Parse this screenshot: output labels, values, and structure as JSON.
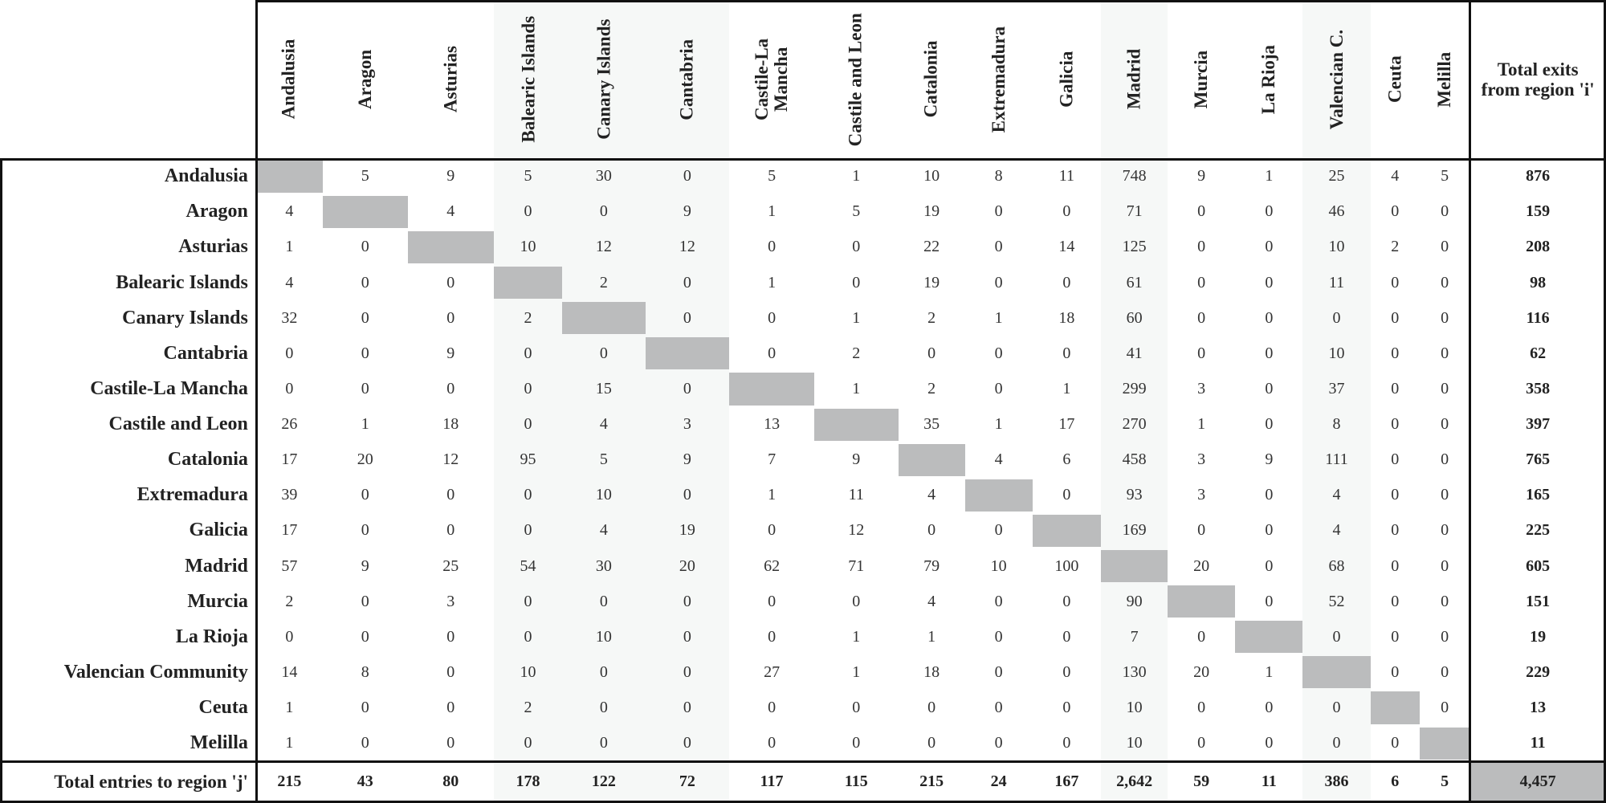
{
  "columns": [
    "Andalusia",
    "Aragon",
    "Asturias",
    "Balearic Islands",
    "Canary Islands",
    "Cantabria",
    "Castile-La Mancha",
    "Castile and Leon",
    "Catalonia",
    "Extremadura",
    "Galicia",
    "Madrid",
    "Murcia",
    "La Rioja",
    "Valencian C.",
    "Ceuta",
    "Melilla"
  ],
  "total_header": "Total exits from region 'i'",
  "rows": [
    {
      "label": "Andalusia",
      "cells": [
        null,
        5,
        9,
        5,
        30,
        0,
        5,
        1,
        10,
        8,
        11,
        748,
        9,
        1,
        25,
        4,
        5
      ],
      "total": 876
    },
    {
      "label": "Aragon",
      "cells": [
        4,
        null,
        4,
        0,
        0,
        9,
        1,
        5,
        19,
        0,
        0,
        71,
        0,
        0,
        46,
        0,
        0
      ],
      "total": 159
    },
    {
      "label": "Asturias",
      "cells": [
        1,
        0,
        null,
        10,
        12,
        12,
        0,
        0,
        22,
        0,
        14,
        125,
        0,
        0,
        10,
        2,
        0
      ],
      "total": 208
    },
    {
      "label": "Balearic Islands",
      "cells": [
        4,
        0,
        0,
        null,
        2,
        0,
        1,
        0,
        19,
        0,
        0,
        61,
        0,
        0,
        11,
        0,
        0
      ],
      "total": 98
    },
    {
      "label": "Canary Islands",
      "cells": [
        32,
        0,
        0,
        2,
        null,
        0,
        0,
        1,
        2,
        1,
        18,
        60,
        0,
        0,
        0,
        0,
        0
      ],
      "total": 116
    },
    {
      "label": "Cantabria",
      "cells": [
        0,
        0,
        9,
        0,
        0,
        null,
        0,
        2,
        0,
        0,
        0,
        41,
        0,
        0,
        10,
        0,
        0
      ],
      "total": 62
    },
    {
      "label": "Castile-La Mancha",
      "cells": [
        0,
        0,
        0,
        0,
        15,
        0,
        null,
        1,
        2,
        0,
        1,
        299,
        3,
        0,
        37,
        0,
        0
      ],
      "total": 358
    },
    {
      "label": "Castile and Leon",
      "cells": [
        26,
        1,
        18,
        0,
        4,
        3,
        13,
        null,
        35,
        1,
        17,
        270,
        1,
        0,
        8,
        0,
        0
      ],
      "total": 397
    },
    {
      "label": "Catalonia",
      "cells": [
        17,
        20,
        12,
        95,
        5,
        9,
        7,
        9,
        null,
        4,
        6,
        458,
        3,
        9,
        111,
        0,
        0
      ],
      "total": 765
    },
    {
      "label": "Extremadura",
      "cells": [
        39,
        0,
        0,
        0,
        10,
        0,
        1,
        11,
        4,
        null,
        0,
        93,
        3,
        0,
        4,
        0,
        0
      ],
      "total": 165
    },
    {
      "label": "Galicia",
      "cells": [
        17,
        0,
        0,
        0,
        4,
        19,
        0,
        12,
        0,
        0,
        null,
        169,
        0,
        0,
        4,
        0,
        0
      ],
      "total": 225
    },
    {
      "label": "Madrid",
      "cells": [
        57,
        9,
        25,
        54,
        30,
        20,
        62,
        71,
        79,
        10,
        100,
        null,
        20,
        0,
        68,
        0,
        0
      ],
      "total": 605
    },
    {
      "label": "Murcia",
      "cells": [
        2,
        0,
        3,
        0,
        0,
        0,
        0,
        0,
        4,
        0,
        0,
        90,
        null,
        0,
        52,
        0,
        0
      ],
      "total": 151
    },
    {
      "label": "La Rioja",
      "cells": [
        0,
        0,
        0,
        0,
        10,
        0,
        0,
        1,
        1,
        0,
        0,
        7,
        0,
        null,
        0,
        0,
        0
      ],
      "total": 19
    },
    {
      "label": "Valencian Community",
      "cells": [
        14,
        8,
        0,
        10,
        0,
        0,
        27,
        1,
        18,
        0,
        0,
        130,
        20,
        1,
        null,
        0,
        0
      ],
      "total": 229
    },
    {
      "label": "Ceuta",
      "cells": [
        1,
        0,
        0,
        2,
        0,
        0,
        0,
        0,
        0,
        0,
        0,
        10,
        0,
        0,
        0,
        null,
        0
      ],
      "total": 13
    },
    {
      "label": "Melilla",
      "cells": [
        1,
        0,
        0,
        0,
        0,
        0,
        0,
        0,
        0,
        0,
        0,
        10,
        0,
        0,
        0,
        0,
        null
      ],
      "total": 11
    }
  ],
  "totals_row": {
    "label": "Total entries to region 'j'",
    "cells": [
      215,
      43,
      80,
      178,
      122,
      72,
      117,
      115,
      215,
      24,
      167,
      "2,642",
      59,
      11,
      386,
      6,
      5
    ],
    "total": "4,457"
  }
}
